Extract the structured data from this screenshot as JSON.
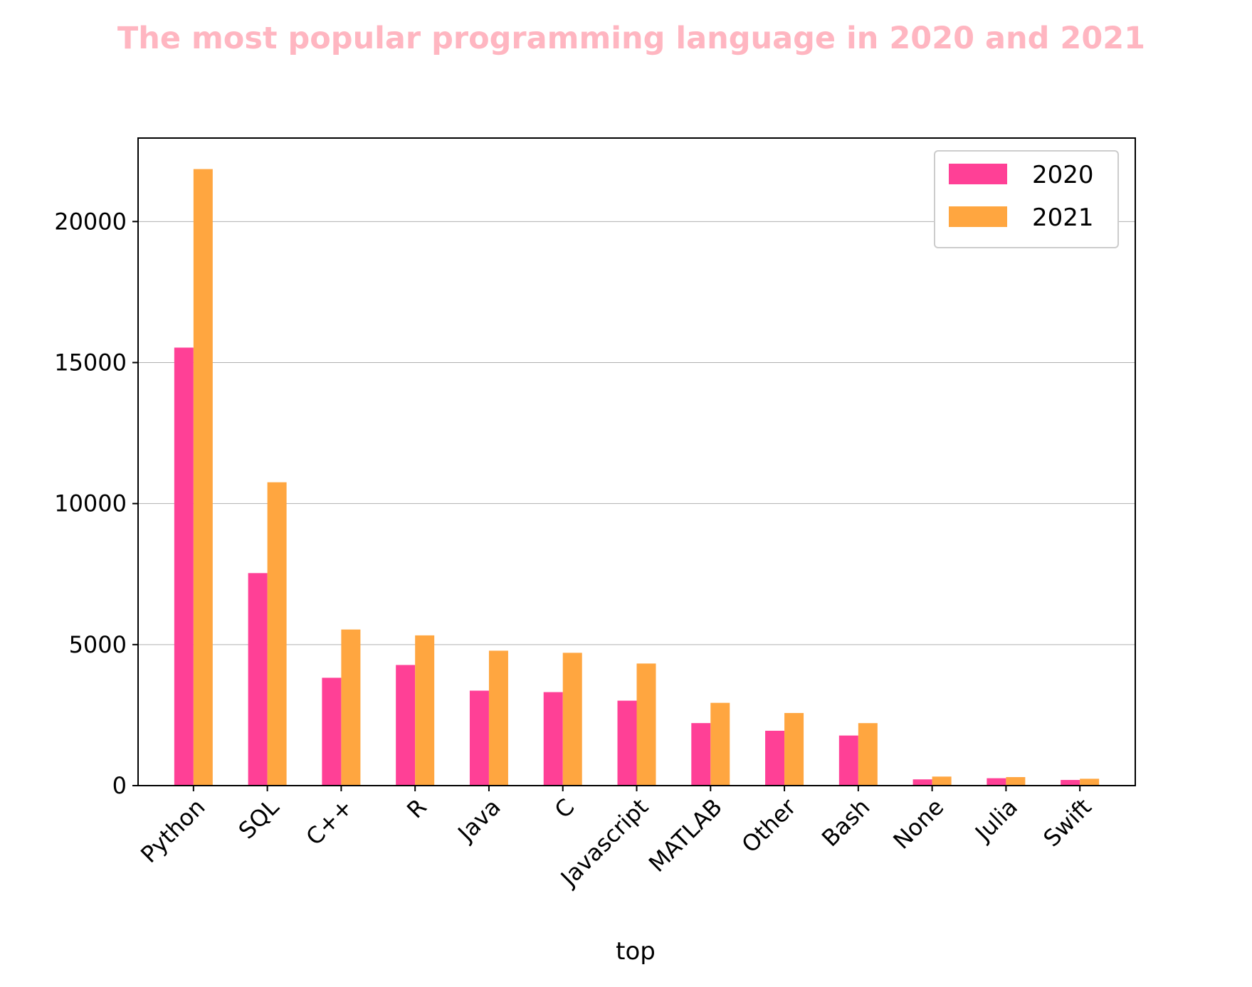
{
  "chart_data": {
    "type": "bar",
    "title": "The most popular programming language in 2020 and 2021",
    "xlabel": "top",
    "ylabel": "",
    "categories": [
      "Python",
      "SQL",
      "C++",
      "R",
      "Java",
      "C",
      "Javascript",
      "MATLAB",
      "Other",
      "Bash",
      "None",
      "Julia",
      "Swift"
    ],
    "series": [
      {
        "name": "2020",
        "color": "#ff4096",
        "values": [
          15530,
          7535,
          3824,
          4277,
          3367,
          3315,
          3012,
          2217,
          1945,
          1776,
          221,
          262,
          201
        ]
      },
      {
        "name": "2021",
        "color": "#ffa640",
        "values": [
          21860,
          10756,
          5535,
          5327,
          4784,
          4709,
          4329,
          2935,
          2575,
          2216,
          320,
          302,
          243
        ]
      }
    ],
    "ylim": [
      0,
      22960
    ],
    "yticks": [
      0,
      5000,
      10000,
      15000,
      20000
    ],
    "grid": "y",
    "legend_position": "upper right",
    "title_color": "#ffb6c1"
  }
}
